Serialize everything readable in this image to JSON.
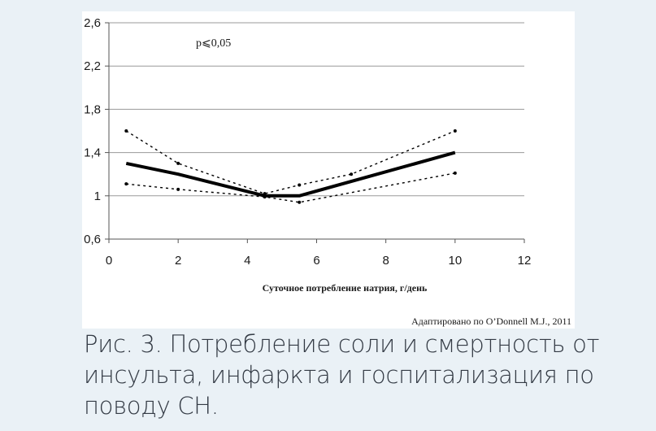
{
  "figure": {
    "caption": "Рис. 3. Потребление соли и смертность от инсульта, инфаркта и госпитализация по поводу СН.",
    "source": "Адаптировано по O’Donnell M.J., 2011"
  },
  "chart_data": {
    "type": "line",
    "xlabel": "Суточное потребление натрия, г/день",
    "ylabel": "",
    "annotation": "p⩽0,05",
    "xlim": [
      0,
      12
    ],
    "ylim": [
      0.6,
      2.6
    ],
    "xticks": [
      0,
      2,
      4,
      6,
      8,
      10,
      12
    ],
    "xtick_labels": [
      "0",
      "2",
      "4",
      "6",
      "8",
      "10",
      "12"
    ],
    "yticks": [
      0.6,
      1,
      1.4,
      1.8,
      2.2,
      2.6
    ],
    "ytick_labels": [
      "0,6",
      "1",
      "1,4",
      "1,8",
      "2,2",
      "2,6"
    ],
    "grid": "horizontal",
    "legend": "none",
    "series": [
      {
        "style": "solid-thick",
        "color": "#000000",
        "x": [
          0.5,
          2,
          4.5,
          5.5,
          10
        ],
        "y": [
          1.3,
          1.2,
          1.0,
          1.0,
          1.4
        ]
      },
      {
        "style": "dotted-upper",
        "color": "#000000",
        "x": [
          0.5,
          2,
          4.5,
          5.5,
          7,
          10
        ],
        "y": [
          1.6,
          1.3,
          1.02,
          1.1,
          1.2,
          1.6
        ]
      },
      {
        "style": "dotted-lower",
        "color": "#000000",
        "x": [
          0.5,
          2,
          4.5,
          5.5,
          10
        ],
        "y": [
          1.11,
          1.06,
          0.99,
          0.94,
          1.21
        ]
      }
    ]
  }
}
